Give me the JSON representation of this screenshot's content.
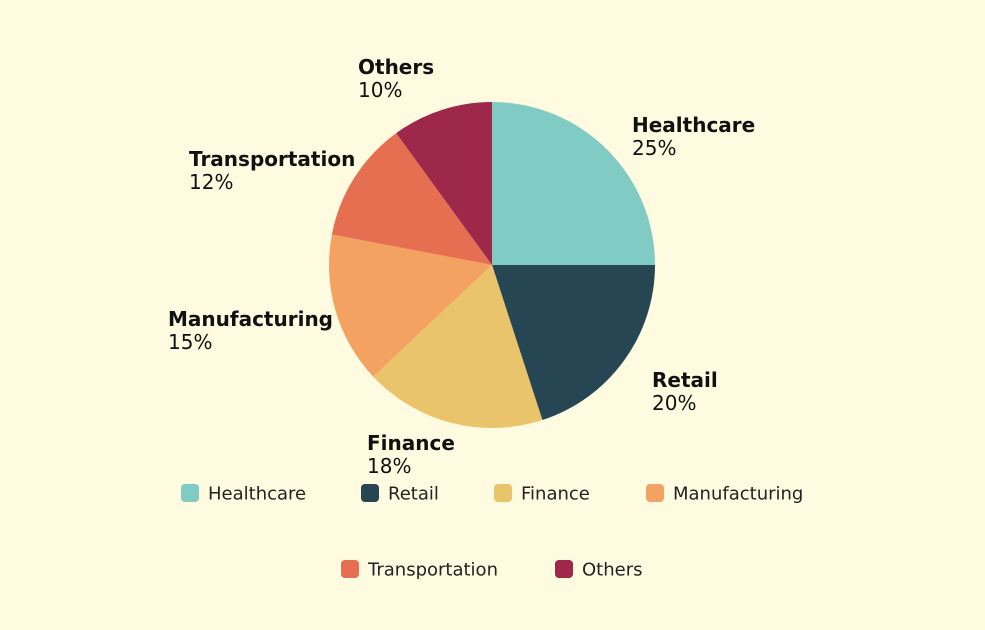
{
  "chart_data": {
    "type": "pie",
    "title": "",
    "slices": [
      {
        "label": "Healthcare",
        "value": 25,
        "value_label": "25%",
        "color": "#81cbc5"
      },
      {
        "label": "Retail",
        "value": 20,
        "value_label": "20%",
        "color": "#264653"
      },
      {
        "label": "Finance",
        "value": 18,
        "value_label": "18%",
        "color": "#e9c46a"
      },
      {
        "label": "Manufacturing",
        "value": 15,
        "value_label": "15%",
        "color": "#f4a261"
      },
      {
        "label": "Transportation",
        "value": 12,
        "value_label": "12%",
        "color": "#e76f51"
      },
      {
        "label": "Others",
        "value": 10,
        "value_label": "10%",
        "color": "#9d2849"
      }
    ],
    "legend": {
      "placement": "bottom",
      "entries": [
        "Healthcare",
        "Retail",
        "Finance",
        "Manufacturing",
        "Transportation",
        "Others"
      ]
    },
    "background": "#fefbe0"
  }
}
